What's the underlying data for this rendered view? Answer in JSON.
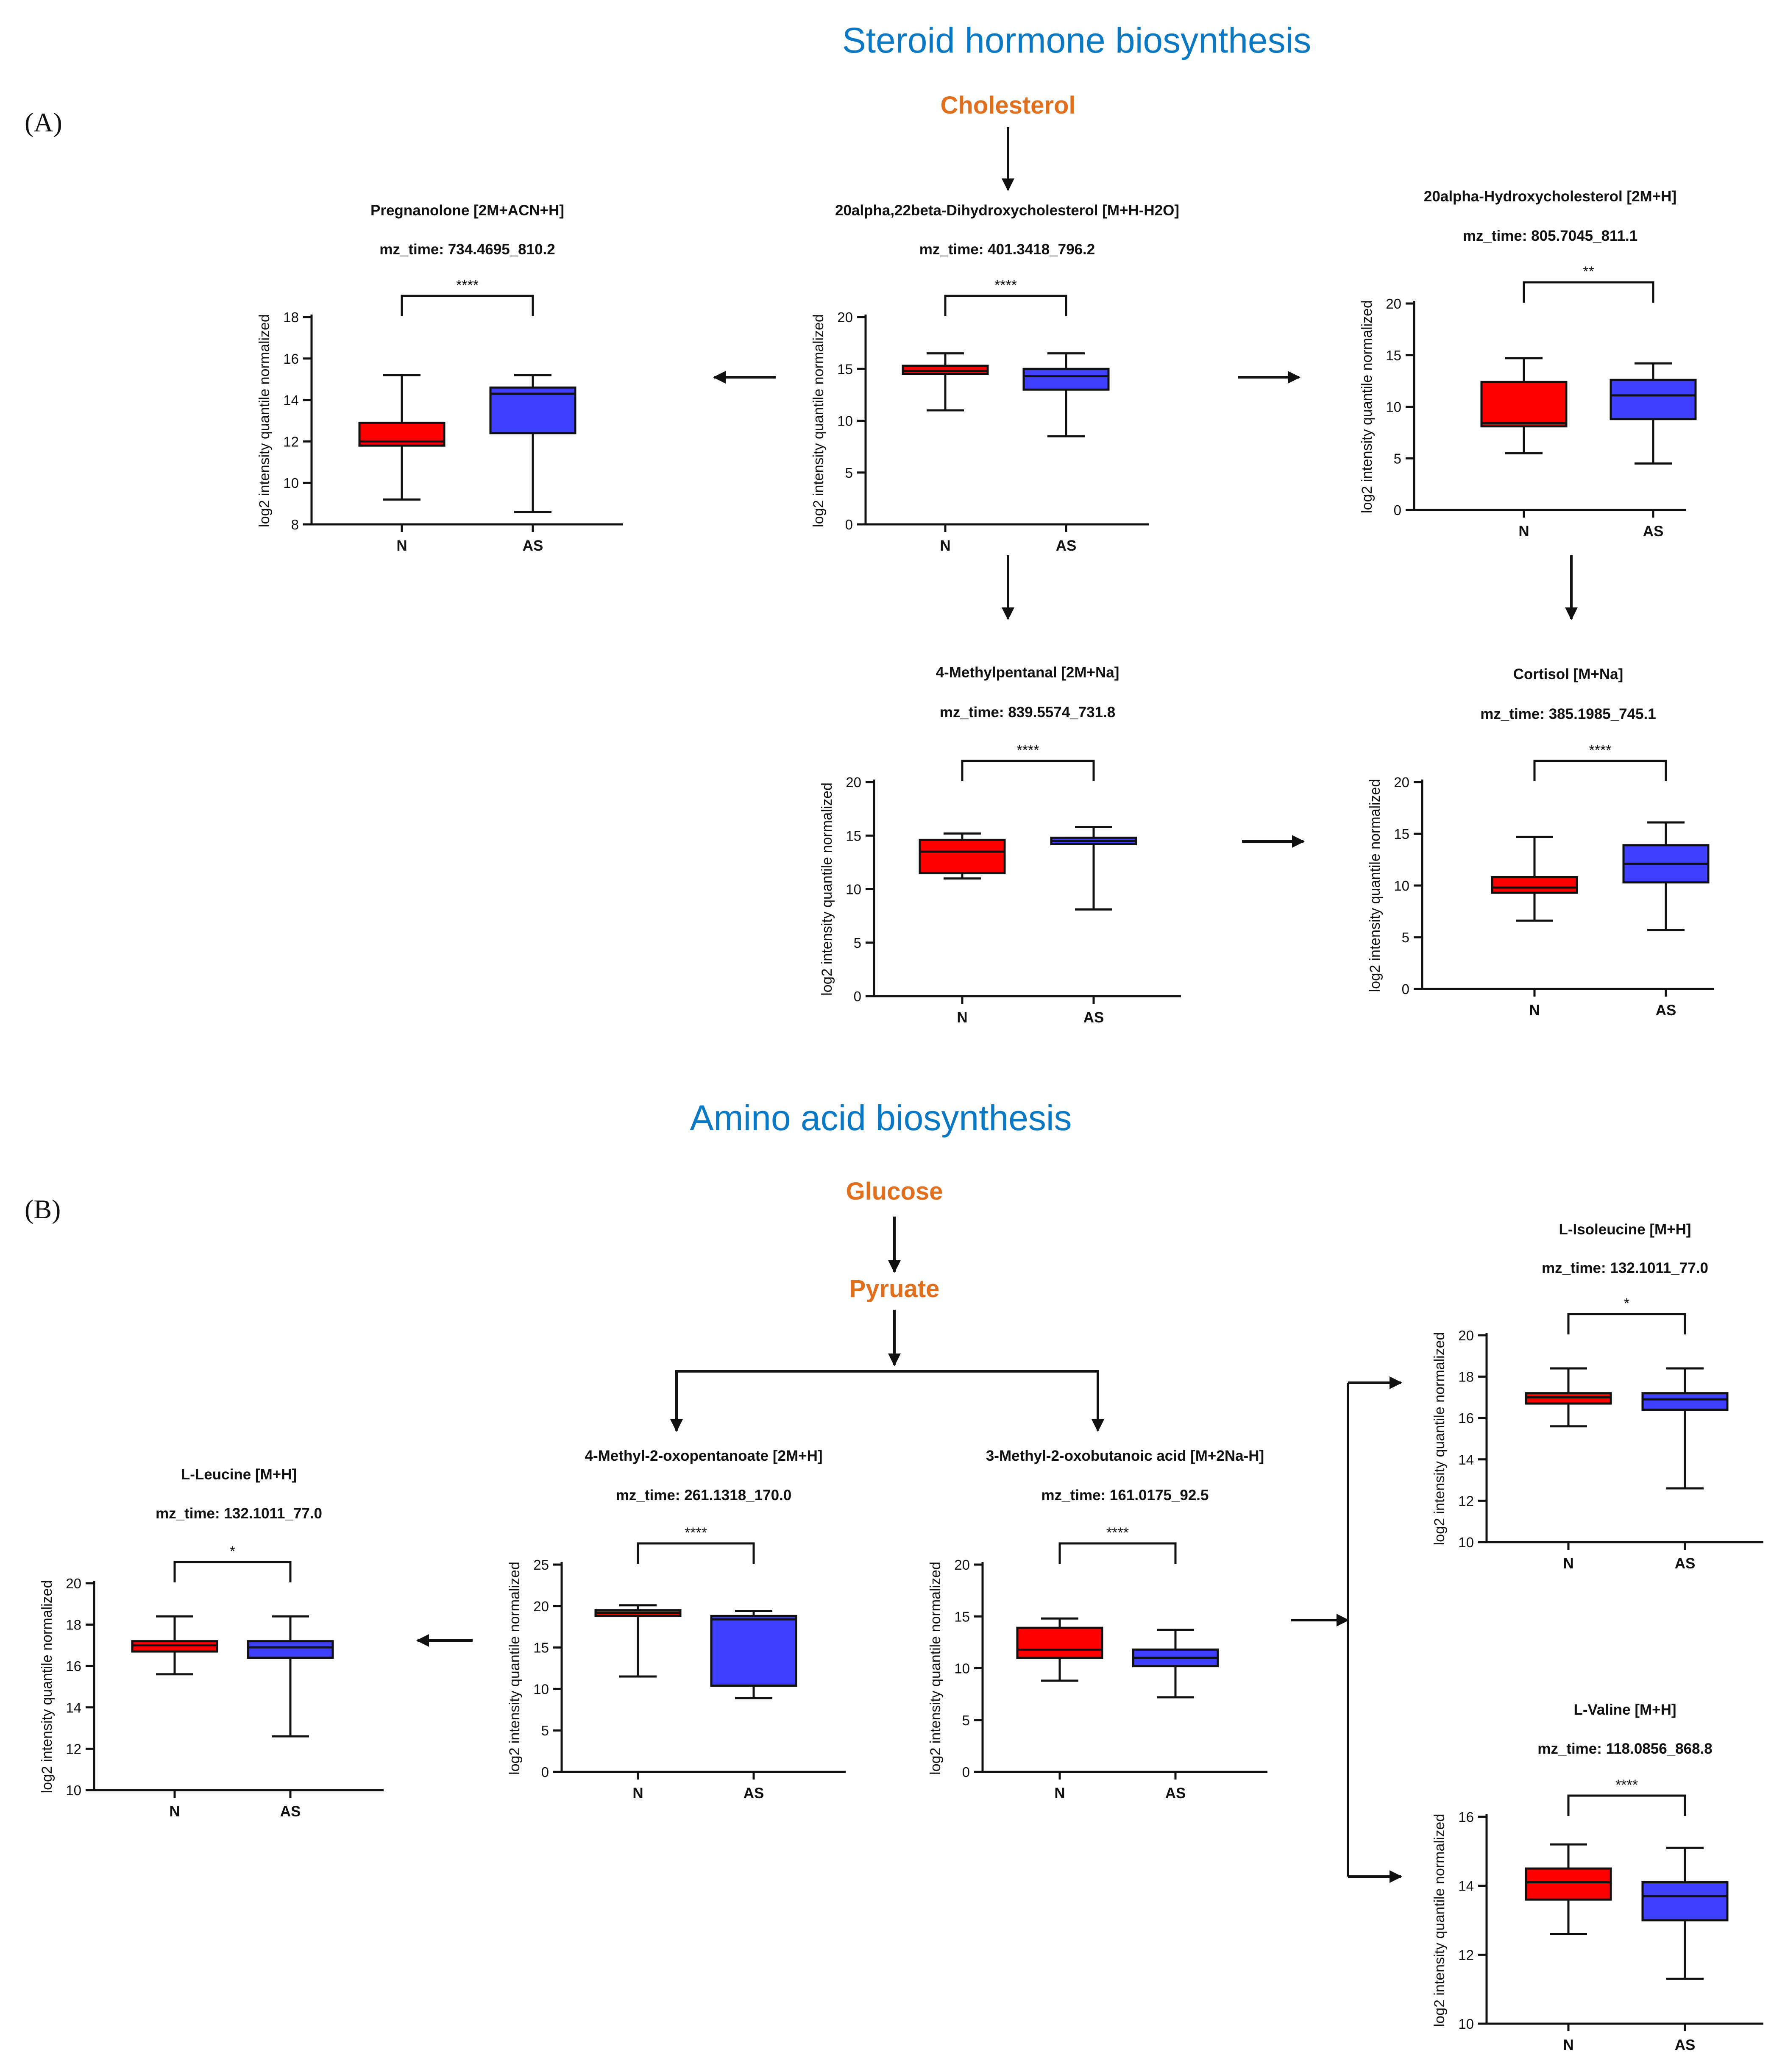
{
  "sections": {
    "a": {
      "title": "Steroid hormone biosynthesis",
      "label": "(A)",
      "precursor": "Cholesterol"
    },
    "b": {
      "title": "Amino acid biosynthesis",
      "label": "(B)",
      "precursor_1": "Glucose",
      "precursor_2": "Pyruate"
    }
  },
  "colors": {
    "N": "#ff0000",
    "AS": "#3f3fff",
    "title": "#0b78c4",
    "precursor": "#e0701e"
  },
  "chart_data": [
    {
      "id": "pregnanolone",
      "type": "box",
      "title": "Pregnanolone [2M+ACN+H]",
      "subtitle": "mz_time: 734.4695_810.2",
      "ylabel": "log2 intensity quantile normalized",
      "ylim": [
        8,
        18
      ],
      "yticks": [
        8,
        10,
        12,
        14,
        16,
        18
      ],
      "categories": [
        "N",
        "AS"
      ],
      "significance": "****",
      "boxes": [
        {
          "name": "N",
          "min": 9.2,
          "q1": 11.8,
          "median": 12.0,
          "q3": 12.9,
          "max": 15.2
        },
        {
          "name": "AS",
          "min": 8.6,
          "q1": 12.4,
          "median": 14.3,
          "q3": 14.6,
          "max": 15.2
        }
      ]
    },
    {
      "id": "dihydroxycholesterol",
      "type": "box",
      "title": "20alpha,22beta-Dihydroxycholesterol [M+H-H2O]",
      "subtitle": "mz_time: 401.3418_796.2",
      "ylabel": "log2 intensity quantile normalized",
      "ylim": [
        0,
        20
      ],
      "yticks": [
        0,
        5,
        10,
        15,
        20
      ],
      "categories": [
        "N",
        "AS"
      ],
      "significance": "****",
      "boxes": [
        {
          "name": "N",
          "min": 11.0,
          "q1": 14.5,
          "median": 14.8,
          "q3": 15.3,
          "max": 16.5
        },
        {
          "name": "AS",
          "min": 8.5,
          "q1": 13.0,
          "median": 14.3,
          "q3": 15.0,
          "max": 16.5
        }
      ]
    },
    {
      "id": "hydroxycholesterol",
      "type": "box",
      "title": "20alpha-Hydroxycholesterol [2M+H]",
      "subtitle": "mz_time: 805.7045_811.1",
      "ylabel": "log2 intensity quantile normalized",
      "ylim": [
        0,
        20
      ],
      "yticks": [
        0,
        5,
        10,
        15,
        20
      ],
      "categories": [
        "N",
        "AS"
      ],
      "significance": "**",
      "boxes": [
        {
          "name": "N",
          "min": 5.5,
          "q1": 8.1,
          "median": 8.4,
          "q3": 12.4,
          "max": 14.7
        },
        {
          "name": "AS",
          "min": 4.5,
          "q1": 8.8,
          "median": 11.1,
          "q3": 12.6,
          "max": 14.2
        }
      ]
    },
    {
      "id": "methylpentanal",
      "type": "box",
      "title": "4-Methylpentanal [2M+Na]",
      "subtitle": "mz_time: 839.5574_731.8",
      "ylabel": "log2 intensity quantile normalized",
      "ylim": [
        0,
        20
      ],
      "yticks": [
        0,
        5,
        10,
        15,
        20
      ],
      "categories": [
        "N",
        "AS"
      ],
      "significance": "****",
      "boxes": [
        {
          "name": "N",
          "min": 11.0,
          "q1": 11.5,
          "median": 13.5,
          "q3": 14.6,
          "max": 15.2
        },
        {
          "name": "AS",
          "min": 8.1,
          "q1": 14.2,
          "median": 14.5,
          "q3": 14.8,
          "max": 15.8
        }
      ]
    },
    {
      "id": "cortisol",
      "type": "box",
      "title": "Cortisol [M+Na]",
      "subtitle": "mz_time: 385.1985_745.1",
      "ylabel": "log2 intensity quantile normalized",
      "ylim": [
        0,
        20
      ],
      "yticks": [
        0,
        5,
        10,
        15,
        20
      ],
      "categories": [
        "N",
        "AS"
      ],
      "significance": "****",
      "boxes": [
        {
          "name": "N",
          "min": 6.6,
          "q1": 9.3,
          "median": 9.8,
          "q3": 10.8,
          "max": 14.7
        },
        {
          "name": "AS",
          "min": 5.7,
          "q1": 10.3,
          "median": 12.1,
          "q3": 13.9,
          "max": 16.1
        }
      ]
    },
    {
      "id": "leucine",
      "type": "box",
      "title": "L-Leucine [M+H]",
      "subtitle": "mz_time: 132.1011_77.0",
      "ylabel": "log2 intensity quantile normalized",
      "ylim": [
        10,
        20
      ],
      "yticks": [
        10,
        12,
        14,
        16,
        18,
        20
      ],
      "categories": [
        "N",
        "AS"
      ],
      "significance": "*",
      "boxes": [
        {
          "name": "N",
          "min": 15.6,
          "q1": 16.7,
          "median": 17.0,
          "q3": 17.2,
          "max": 18.4
        },
        {
          "name": "AS",
          "min": 12.6,
          "q1": 16.4,
          "median": 16.9,
          "q3": 17.2,
          "max": 18.4
        }
      ]
    },
    {
      "id": "oxopentanoate",
      "type": "box",
      "title": "4-Methyl-2-oxopentanoate [2M+H]",
      "subtitle": "mz_time: 261.1318_170.0",
      "ylabel": "log2 intensity quantile normalized",
      "ylim": [
        0,
        25
      ],
      "yticks": [
        0,
        5,
        10,
        15,
        20,
        25
      ],
      "categories": [
        "N",
        "AS"
      ],
      "significance": "****",
      "boxes": [
        {
          "name": "N",
          "min": 11.5,
          "q1": 18.8,
          "median": 19.2,
          "q3": 19.5,
          "max": 20.1
        },
        {
          "name": "AS",
          "min": 8.9,
          "q1": 10.4,
          "median": 18.4,
          "q3": 18.8,
          "max": 19.4
        }
      ]
    },
    {
      "id": "oxobutanoic",
      "type": "box",
      "title": "3-Methyl-2-oxobutanoic acid [M+2Na-H]",
      "subtitle": "mz_time: 161.0175_92.5",
      "ylabel": "log2 intensity quantile normalized",
      "ylim": [
        0,
        20
      ],
      "yticks": [
        0,
        5,
        10,
        15,
        20
      ],
      "categories": [
        "N",
        "AS"
      ],
      "significance": "****",
      "boxes": [
        {
          "name": "N",
          "min": 8.8,
          "q1": 11.0,
          "median": 11.8,
          "q3": 13.9,
          "max": 14.8
        },
        {
          "name": "AS",
          "min": 7.2,
          "q1": 10.2,
          "median": 11.0,
          "q3": 11.8,
          "max": 13.7
        }
      ]
    },
    {
      "id": "isoleucine",
      "type": "box",
      "title": "L-Isoleucine [M+H]",
      "subtitle": "mz_time: 132.1011_77.0",
      "ylabel": "log2 intensity quantile normalized",
      "ylim": [
        10,
        20
      ],
      "yticks": [
        10,
        12,
        14,
        16,
        18,
        20
      ],
      "categories": [
        "N",
        "AS"
      ],
      "significance": "*",
      "boxes": [
        {
          "name": "N",
          "min": 15.6,
          "q1": 16.7,
          "median": 17.0,
          "q3": 17.2,
          "max": 18.4
        },
        {
          "name": "AS",
          "min": 12.6,
          "q1": 16.4,
          "median": 16.9,
          "q3": 17.2,
          "max": 18.4
        }
      ]
    },
    {
      "id": "valine",
      "type": "box",
      "title": "L-Valine [M+H]",
      "subtitle": "mz_time: 118.0856_868.8",
      "ylabel": "log2 intensity quantile normalized",
      "ylim": [
        10,
        16
      ],
      "yticks": [
        10,
        12,
        14,
        16
      ],
      "categories": [
        "N",
        "AS"
      ],
      "significance": "****",
      "boxes": [
        {
          "name": "N",
          "min": 12.6,
          "q1": 13.6,
          "median": 14.1,
          "q3": 14.5,
          "max": 15.2
        },
        {
          "name": "AS",
          "min": 11.3,
          "q1": 13.0,
          "median": 13.7,
          "q3": 14.1,
          "max": 15.1
        }
      ]
    }
  ]
}
